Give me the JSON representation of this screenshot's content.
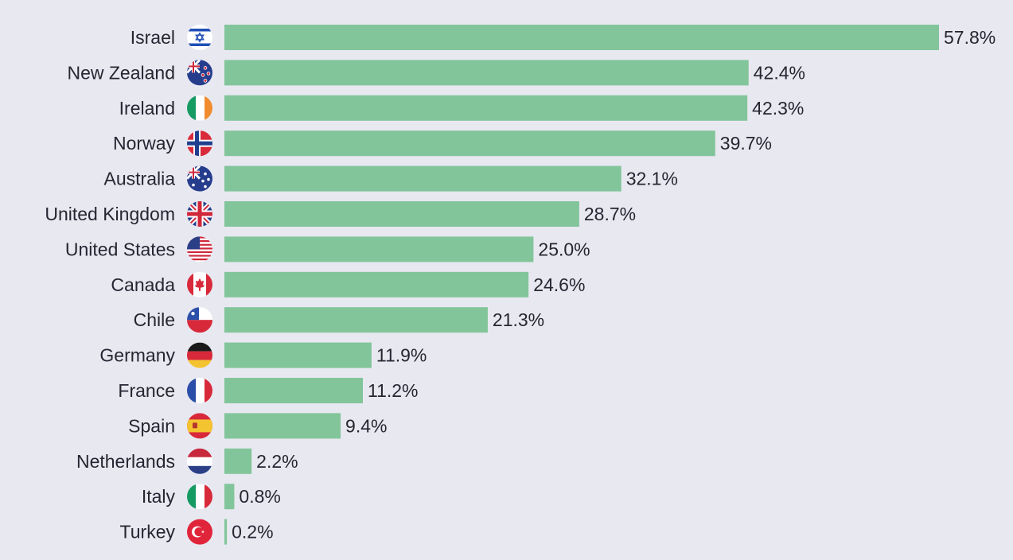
{
  "chart_data": {
    "type": "bar",
    "orientation": "horizontal",
    "title": "",
    "xlabel": "",
    "ylabel": "",
    "xlim": [
      0,
      60
    ],
    "grid": false,
    "legend": "none",
    "bar_color": "#82c59a",
    "categories": [
      "Israel",
      "New Zealand",
      "Ireland",
      "Norway",
      "Australia",
      "United Kingdom",
      "United States",
      "Canada",
      "Chile",
      "Germany",
      "France",
      "Spain",
      "Netherlands",
      "Italy",
      "Turkey"
    ],
    "values": [
      57.8,
      42.4,
      42.3,
      39.7,
      32.1,
      28.7,
      25.0,
      24.6,
      21.3,
      11.9,
      11.2,
      9.4,
      2.2,
      0.8,
      0.2
    ],
    "value_labels": [
      "57.8%",
      "42.4%",
      "42.3%",
      "39.7%",
      "32.1%",
      "28.7%",
      "25.0%",
      "24.6%",
      "21.3%",
      "11.9%",
      "11.2%",
      "9.4%",
      "2.2%",
      "0.8%",
      "0.2%"
    ],
    "flag_icons": [
      "israel-flag-icon",
      "new-zealand-flag-icon",
      "ireland-flag-icon",
      "norway-flag-icon",
      "australia-flag-icon",
      "united-kingdom-flag-icon",
      "united-states-flag-icon",
      "canada-flag-icon",
      "chile-flag-icon",
      "germany-flag-icon",
      "france-flag-icon",
      "spain-flag-icon",
      "netherlands-flag-icon",
      "italy-flag-icon",
      "turkey-flag-icon"
    ]
  }
}
